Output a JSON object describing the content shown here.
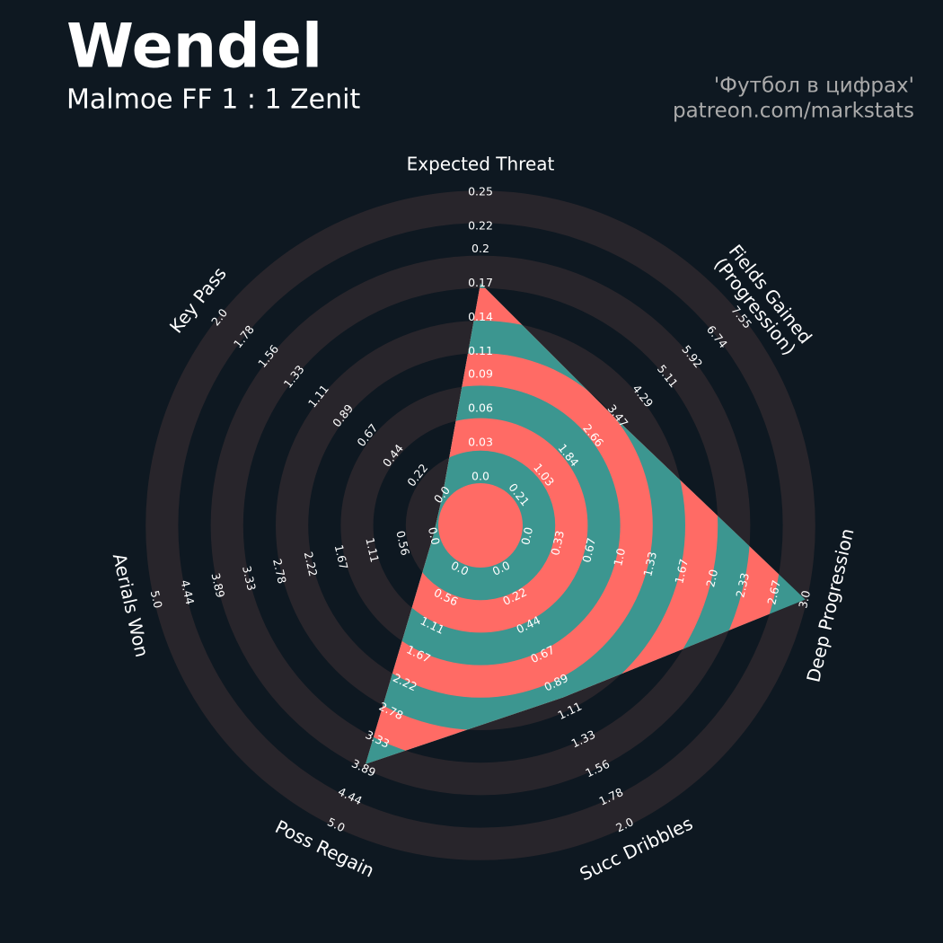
{
  "chart_data": {
    "type": "radar",
    "title": "Wendel",
    "subtitle": "Malmoe FF 1 : 1 Zenit",
    "credits": [
      "'Футбол в цифрах'",
      "patreon.com/markstats"
    ],
    "colors": {
      "background": "#0e1821",
      "ring": "#28252b",
      "fill_a": "#3c9690",
      "fill_b": "#ff6b65"
    },
    "axes": [
      {
        "name": "Expected Threat",
        "value": 0.17,
        "ticks": [
          {
            "value": 0,
            "label": "0.0"
          },
          0.03,
          0.06,
          0.09,
          0.11,
          0.14,
          0.17,
          0.2,
          0.22,
          0.25
        ]
      },
      {
        "name": "Fields Gained\n(Progression)",
        "value": 3.4,
        "ticks": [
          0.21,
          1.03,
          1.84,
          2.66,
          3.47,
          4.29,
          5.11,
          5.92,
          6.74,
          7.55
        ]
      },
      {
        "name": "Deep Progression",
        "value": 3,
        "ticks": [
          {
            "value": 0,
            "label": "0.0"
          },
          0.33,
          0.67,
          {
            "value": 1,
            "label": "1.0"
          },
          1.33,
          1.67,
          {
            "value": 2,
            "label": "2.0"
          },
          2.33,
          2.67,
          {
            "value": 3,
            "label": "3.0"
          }
        ]
      },
      {
        "name": "Succ Dribbles",
        "value": 1,
        "ticks": [
          {
            "value": 0,
            "label": "0.0"
          },
          0.22,
          0.44,
          0.67,
          0.89,
          1.11,
          1.33,
          1.56,
          1.78,
          {
            "value": 2,
            "label": "2.0"
          }
        ]
      },
      {
        "name": "Poss Regain",
        "value": 3.8,
        "ticks": [
          {
            "value": 0,
            "label": "0.0"
          },
          0.56,
          1.11,
          1.67,
          2.22,
          2.78,
          3.33,
          3.89,
          4.44,
          {
            "value": 5,
            "label": "5.0"
          }
        ]
      },
      {
        "name": "Aerials Won",
        "value": 0,
        "ticks": [
          {
            "value": 0,
            "label": "0.0"
          },
          0.56,
          1.11,
          1.67,
          2.22,
          2.78,
          3.33,
          3.89,
          4.44,
          {
            "value": 5,
            "label": "5.0"
          }
        ]
      },
      {
        "name": "Key Pass",
        "value": 0,
        "ticks": [
          {
            "value": 0,
            "label": "0.0"
          },
          0.22,
          0.44,
          0.67,
          0.89,
          1.11,
          1.33,
          1.56,
          1.78,
          {
            "value": 2,
            "label": "2.0"
          }
        ]
      }
    ]
  }
}
